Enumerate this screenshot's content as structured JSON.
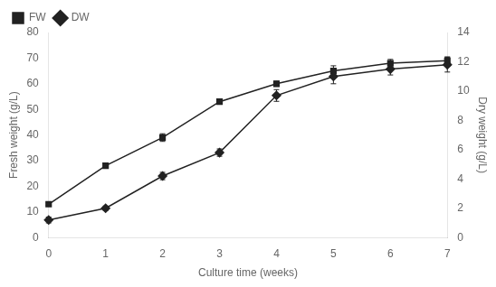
{
  "chart_data": {
    "type": "line",
    "x": [
      0,
      1,
      2,
      3,
      4,
      5,
      6,
      7
    ],
    "xlabel": "Culture time (weeks)",
    "ylabel": "Fresh weight (g/L)",
    "y2label": "Dry weight (g/L)",
    "series": [
      {
        "name": "FW",
        "color": "#222222",
        "marker": "square",
        "values": [
          13,
          28,
          39,
          53,
          60,
          65,
          68,
          69
        ],
        "errors": [
          0.5,
          1.0,
          1.5,
          1.0,
          1.0,
          2.0,
          1.5,
          1.5
        ]
      },
      {
        "name": "DW",
        "color": "#222222",
        "marker": "diamond",
        "axis": "y2",
        "values": [
          1.2,
          2.0,
          4.2,
          5.8,
          9.7,
          11.0,
          11.5,
          11.8
        ],
        "errors": [
          0.2,
          0.15,
          0.25,
          0.25,
          0.4,
          0.5,
          0.4,
          0.5
        ]
      }
    ],
    "xlim": [
      0,
      7
    ],
    "xticks": [
      0,
      1,
      2,
      3,
      4,
      5,
      6,
      7
    ],
    "ylim": [
      0,
      80
    ],
    "yticks": [
      0,
      10,
      20,
      30,
      40,
      50,
      60,
      70,
      80
    ],
    "y2lim": [
      0,
      14
    ],
    "y2ticks": [
      0,
      2,
      4,
      6,
      8,
      10,
      12,
      14
    ],
    "grid": false,
    "legend": "upper left"
  }
}
